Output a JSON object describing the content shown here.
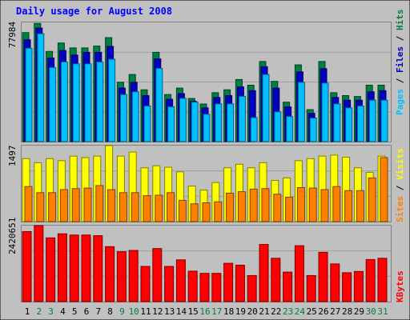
{
  "title": "Daily usage for August 2008",
  "colors": {
    "background": "#c0c0c0",
    "title": "#0000ff",
    "hits": "#008040",
    "files": "#0000c0",
    "pages": "#00c0ff",
    "visits": "#ffff00",
    "sites": "#ff8000",
    "kbytes": "#ff0000",
    "weekend_label": "#008040"
  },
  "chart_data": [
    {
      "type": "bar",
      "title": "Daily usage for August 2008",
      "panel": "pages-files-hits",
      "max_label": "77984",
      "ylim": [
        0,
        77984
      ],
      "legend": {
        "pages": "Pages",
        "sep1": " / ",
        "files": "Files",
        "sep2": " / ",
        "hits": "Hits"
      },
      "categories": [
        "1",
        "2",
        "3",
        "4",
        "5",
        "6",
        "7",
        "8",
        "9",
        "10",
        "11",
        "12",
        "13",
        "14",
        "15",
        "16",
        "17",
        "18",
        "19",
        "20",
        "21",
        "22",
        "23",
        "24",
        "25",
        "26",
        "27",
        "28",
        "29",
        "30",
        "31"
      ],
      "weekend_days": [
        "2",
        "3",
        "9",
        "10",
        "16",
        "17",
        "23",
        "24",
        "30",
        "31"
      ],
      "series": [
        {
          "name": "Hits",
          "values": [
            71300,
            77300,
            59000,
            64500,
            61300,
            61300,
            62500,
            68000,
            38800,
            43900,
            33900,
            58400,
            30800,
            35000,
            28200,
            24600,
            32000,
            33900,
            40600,
            36900,
            52400,
            39400,
            25800,
            50200,
            20900,
            52400,
            32000,
            30100,
            29500,
            36900,
            36900
          ]
        },
        {
          "name": "Files",
          "values": [
            66600,
            74300,
            54700,
            59600,
            56600,
            58400,
            58400,
            62300,
            35000,
            38800,
            30100,
            54100,
            27700,
            31400,
            26400,
            22100,
            28900,
            30100,
            35800,
            33300,
            49000,
            35000,
            22700,
            45600,
            18500,
            47700,
            28900,
            27100,
            27100,
            32600,
            33300
          ]
        },
        {
          "name": "Pages",
          "values": [
            61100,
            70600,
            48500,
            52100,
            50900,
            50900,
            52100,
            53900,
            30800,
            32600,
            23300,
            47900,
            22800,
            28300,
            25800,
            17900,
            24700,
            24700,
            29600,
            15700,
            43900,
            19500,
            16400,
            38800,
            15400,
            38300,
            24700,
            22100,
            23300,
            27100,
            27100
          ]
        }
      ]
    },
    {
      "type": "bar",
      "panel": "visits-sites",
      "max_label": "1497",
      "ylim": [
        0,
        1497
      ],
      "legend": {
        "sites": "Sites",
        "sep": " / ",
        "visits": "Visits"
      },
      "categories": [
        "1",
        "2",
        "3",
        "4",
        "5",
        "6",
        "7",
        "8",
        "9",
        "10",
        "11",
        "12",
        "13",
        "14",
        "15",
        "16",
        "17",
        "18",
        "19",
        "20",
        "21",
        "22",
        "23",
        "24",
        "25",
        "26",
        "27",
        "28",
        "29",
        "30",
        "31"
      ],
      "series": [
        {
          "name": "Visits",
          "values": [
            1240,
            1160,
            1240,
            1200,
            1290,
            1260,
            1290,
            1497,
            1290,
            1370,
            1060,
            1100,
            1070,
            980,
            700,
            620,
            770,
            1060,
            1130,
            1060,
            1160,
            810,
            860,
            1200,
            1240,
            1290,
            1310,
            1270,
            1060,
            970,
            1290
          ]
        },
        {
          "name": "Sites",
          "values": [
            690,
            570,
            570,
            630,
            650,
            660,
            710,
            630,
            570,
            570,
            510,
            520,
            570,
            420,
            350,
            370,
            390,
            560,
            590,
            640,
            650,
            540,
            480,
            670,
            660,
            630,
            690,
            610,
            610,
            860,
            1260
          ]
        }
      ]
    },
    {
      "type": "bar",
      "panel": "kbytes",
      "max_label": "2420651",
      "ylim": [
        0,
        2420651
      ],
      "legend": {
        "kbytes": "KBytes"
      },
      "categories": [
        "1",
        "2",
        "3",
        "4",
        "5",
        "6",
        "7",
        "8",
        "9",
        "10",
        "11",
        "12",
        "13",
        "14",
        "15",
        "16",
        "17",
        "18",
        "19",
        "20",
        "21",
        "22",
        "23",
        "24",
        "25",
        "26",
        "27",
        "28",
        "29",
        "30",
        "31"
      ],
      "series": [
        {
          "name": "KBytes",
          "values": [
            2230000,
            2420651,
            2030000,
            2160000,
            2120000,
            2120000,
            2100000,
            1750000,
            1590000,
            1630000,
            1120000,
            1690000,
            1120000,
            1330000,
            970000,
            900000,
            900000,
            1220000,
            1160000,
            830000,
            1820000,
            1380000,
            940000,
            1780000,
            830000,
            1570000,
            1200000,
            920000,
            960000,
            1340000,
            1380000
          ]
        }
      ]
    }
  ]
}
